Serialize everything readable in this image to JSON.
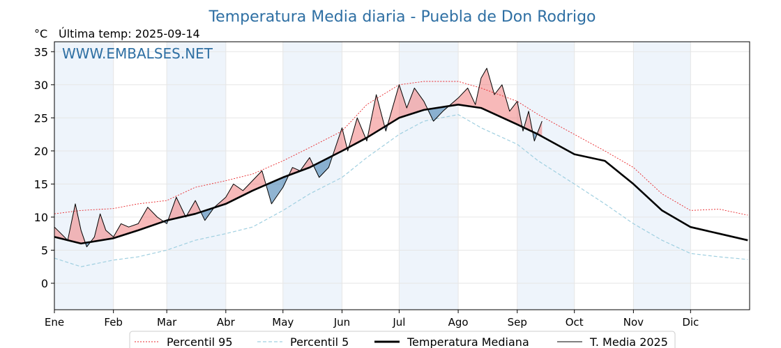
{
  "page": {
    "title": "Temperatura Media diaria - Puebla de Don Rodrigo",
    "unit_label": "°C",
    "subtitle": "Última temp: 2025-09-14",
    "watermark": "WWW.EMBALSES.NET"
  },
  "colors": {
    "p95": "#e8262a",
    "p5": "#9fcfe0",
    "median": "#000000",
    "year": "#000000",
    "above_fill": "#f08080",
    "below_fill": "#4682b4",
    "month_band": "#eef4fb"
  },
  "chart_data": {
    "type": "line",
    "x_unit": "day of year",
    "categories": [
      "Ene",
      "Feb",
      "Mar",
      "Abr",
      "May",
      "Jun",
      "Jul",
      "Ago",
      "Sep",
      "Oct",
      "Nov",
      "Dic"
    ],
    "month_start_days": [
      1,
      32,
      60,
      91,
      121,
      152,
      182,
      213,
      244,
      274,
      305,
      335
    ],
    "ylim": [
      -4,
      36.5
    ],
    "yticks": [
      0,
      5,
      10,
      15,
      20,
      25,
      30,
      35
    ],
    "grid": true,
    "legend_position": "bottom-center",
    "series": [
      {
        "name": "Percentil 95",
        "x": [
          1,
          15,
          32,
          45,
          60,
          75,
          91,
          105,
          121,
          135,
          152,
          165,
          182,
          195,
          213,
          225,
          244,
          255,
          274,
          290,
          305,
          320,
          335,
          350,
          365
        ],
        "y": [
          10.5,
          11.0,
          11.3,
          12.0,
          12.5,
          14.5,
          15.5,
          16.5,
          18.5,
          20.5,
          23.0,
          27.0,
          30.0,
          30.5,
          30.5,
          29.5,
          27.5,
          25.5,
          22.5,
          20.0,
          17.5,
          13.5,
          11.0,
          11.2,
          10.3
        ]
      },
      {
        "name": "Percentil 5",
        "x": [
          1,
          15,
          32,
          45,
          60,
          75,
          91,
          105,
          121,
          135,
          152,
          165,
          182,
          195,
          213,
          225,
          244,
          255,
          274,
          290,
          305,
          320,
          335,
          350,
          365
        ],
        "y": [
          3.8,
          2.5,
          3.5,
          4.0,
          5.0,
          6.5,
          7.5,
          8.5,
          11.0,
          13.5,
          16.0,
          19.0,
          22.5,
          24.5,
          25.5,
          23.5,
          21.0,
          18.5,
          15.0,
          12.0,
          9.0,
          6.5,
          4.5,
          4.0,
          3.6
        ]
      },
      {
        "name": "Temperatura Mediana",
        "x": [
          1,
          15,
          32,
          45,
          60,
          75,
          91,
          105,
          121,
          135,
          152,
          165,
          182,
          195,
          213,
          225,
          244,
          255,
          274,
          290,
          305,
          320,
          335,
          350,
          365
        ],
        "y": [
          7.0,
          6.0,
          6.8,
          8.0,
          9.5,
          10.5,
          12.0,
          14.0,
          16.0,
          17.5,
          20.0,
          22.0,
          25.0,
          26.2,
          27.0,
          26.5,
          24.0,
          22.5,
          19.5,
          18.5,
          15.0,
          11.0,
          8.5,
          7.5,
          6.5
        ]
      },
      {
        "name": "T. Media 2025",
        "x": [
          1,
          8,
          12,
          15,
          18,
          22,
          25,
          28,
          32,
          36,
          40,
          45,
          50,
          55,
          60,
          65,
          70,
          75,
          80,
          85,
          91,
          95,
          100,
          105,
          110,
          115,
          121,
          126,
          130,
          135,
          140,
          145,
          152,
          155,
          160,
          165,
          170,
          175,
          182,
          186,
          190,
          195,
          200,
          205,
          213,
          218,
          222,
          225,
          228,
          232,
          236,
          240,
          244,
          247,
          250,
          253,
          257
        ],
        "y": [
          8.5,
          6.5,
          12.0,
          8.0,
          5.5,
          7.0,
          10.5,
          8.0,
          7.0,
          9.0,
          8.5,
          9.0,
          11.5,
          10.0,
          9.0,
          13.0,
          10.0,
          12.5,
          9.5,
          11.5,
          13.0,
          15.0,
          14.0,
          15.5,
          17.0,
          12.0,
          14.5,
          17.5,
          17.0,
          19.0,
          16.0,
          17.5,
          23.5,
          20.0,
          25.0,
          21.5,
          28.5,
          23.0,
          30.0,
          26.5,
          29.5,
          27.5,
          24.5,
          26.0,
          28.0,
          29.5,
          27.0,
          31.0,
          32.5,
          28.5,
          30.0,
          26.0,
          27.5,
          23.0,
          26.0,
          21.5,
          24.5
        ]
      }
    ]
  },
  "legend": [
    {
      "label": "Percentil 95",
      "key": "p95"
    },
    {
      "label": "Percentil 5",
      "key": "p5"
    },
    {
      "label": "Temperatura Mediana",
      "key": "median"
    },
    {
      "label": "T. Media 2025",
      "key": "year"
    }
  ]
}
